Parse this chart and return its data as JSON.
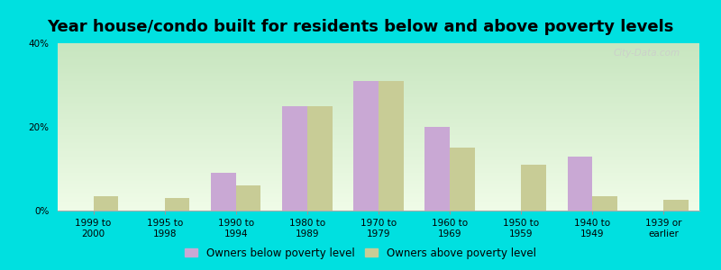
{
  "title": "Year house/condo built for residents below and above poverty levels",
  "categories": [
    "1999 to\n2000",
    "1995 to\n1998",
    "1990 to\n1994",
    "1980 to\n1989",
    "1970 to\n1979",
    "1960 to\n1969",
    "1950 to\n1959",
    "1940 to\n1949",
    "1939 or\nearlier"
  ],
  "below_poverty": [
    0.0,
    0.0,
    9.0,
    25.0,
    31.0,
    20.0,
    0.0,
    13.0,
    0.0
  ],
  "above_poverty": [
    3.5,
    3.0,
    6.0,
    25.0,
    31.0,
    15.0,
    11.0,
    3.5,
    2.5
  ],
  "below_color": "#c9a8d4",
  "above_color": "#c8cc96",
  "outer_bg": "#00e0e0",
  "ylim": [
    0,
    40
  ],
  "yticks": [
    0,
    20,
    40
  ],
  "bar_width": 0.35,
  "legend_below": "Owners below poverty level",
  "legend_above": "Owners above poverty level",
  "title_fontsize": 13,
  "tick_fontsize": 7.5,
  "legend_fontsize": 8.5
}
